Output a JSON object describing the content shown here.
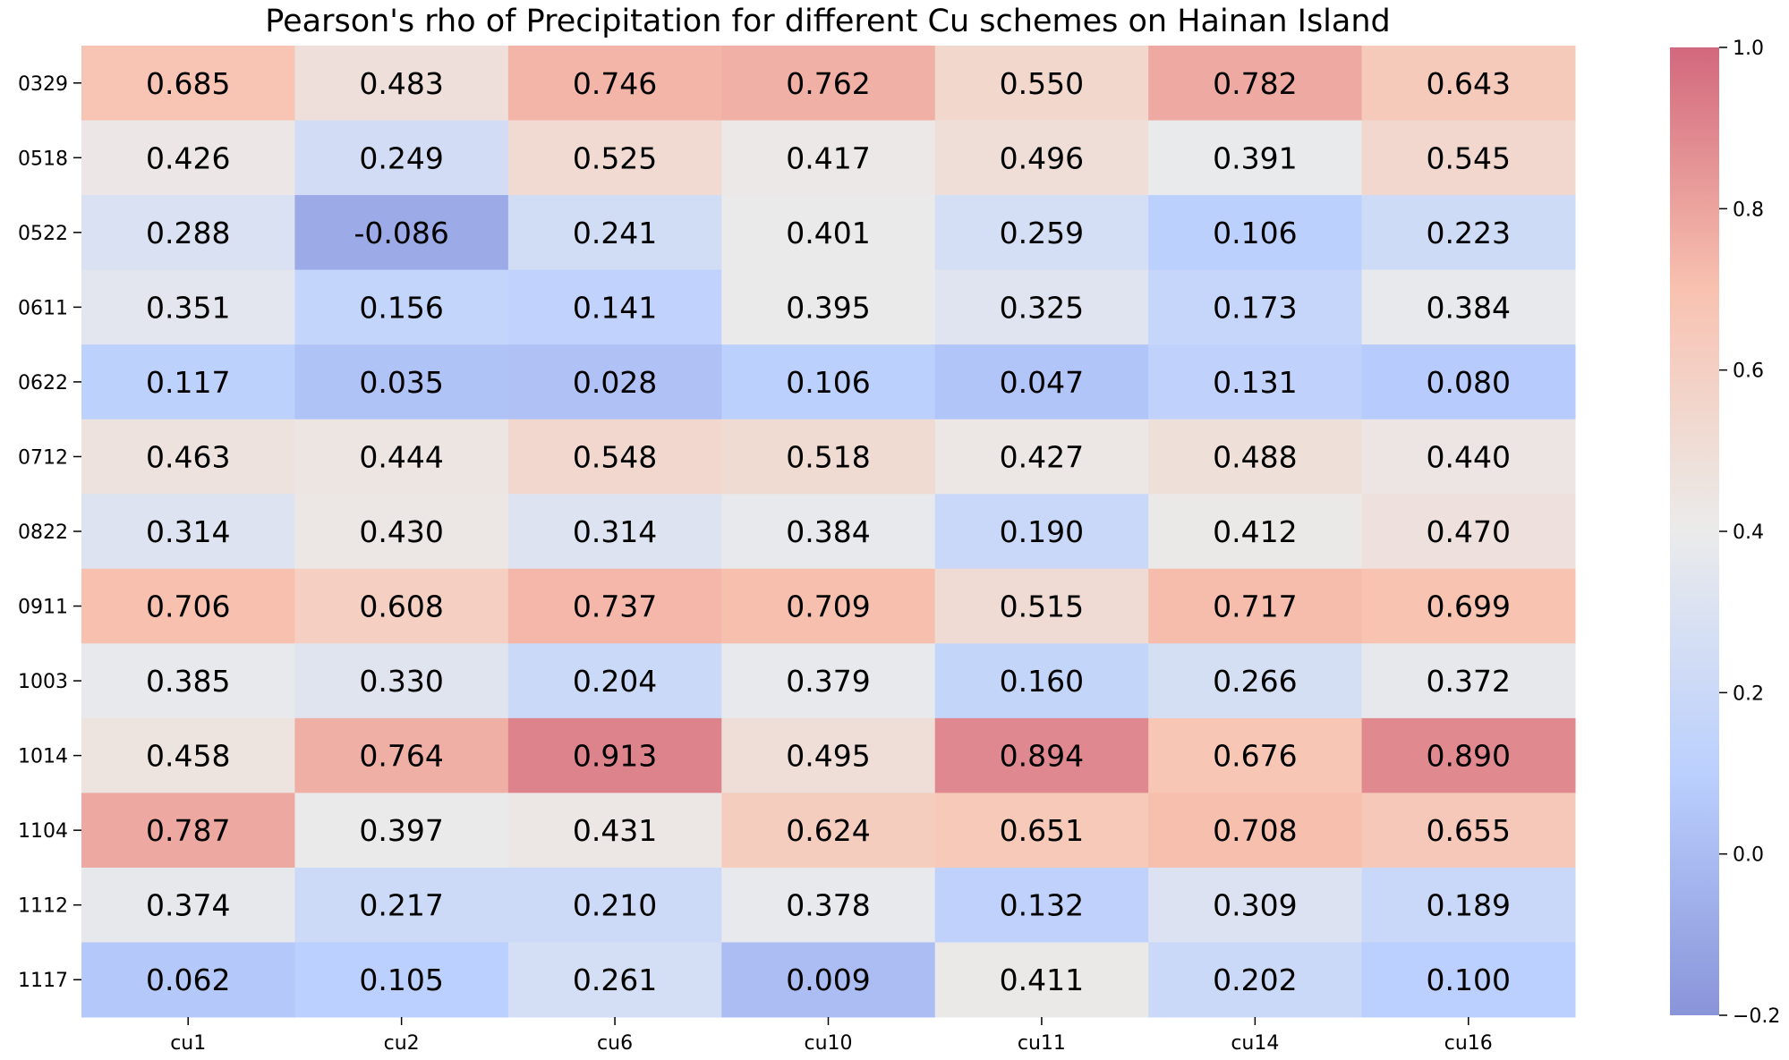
{
  "chart_data": {
    "type": "heatmap",
    "title": "Pearson's rho of Precipitation for different Cu schemes on Hainan Island",
    "xlabel": "",
    "ylabel": "",
    "columns": [
      "cu1",
      "cu2",
      "cu6",
      "cu10",
      "cu11",
      "cu14",
      "cu16"
    ],
    "rows": [
      "0329",
      "0518",
      "0522",
      "0611",
      "0622",
      "0712",
      "0822",
      "0911",
      "1003",
      "1014",
      "1104",
      "1112",
      "1117"
    ],
    "values": [
      [
        0.685,
        0.483,
        0.746,
        0.762,
        0.55,
        0.782,
        0.643
      ],
      [
        0.426,
        0.249,
        0.525,
        0.417,
        0.496,
        0.391,
        0.545
      ],
      [
        0.288,
        -0.086,
        0.241,
        0.401,
        0.259,
        0.106,
        0.223
      ],
      [
        0.351,
        0.156,
        0.141,
        0.395,
        0.325,
        0.173,
        0.384
      ],
      [
        0.117,
        0.035,
        0.028,
        0.106,
        0.047,
        0.131,
        0.08
      ],
      [
        0.463,
        0.444,
        0.548,
        0.518,
        0.427,
        0.488,
        0.44
      ],
      [
        0.314,
        0.43,
        0.314,
        0.384,
        0.19,
        0.412,
        0.47
      ],
      [
        0.706,
        0.608,
        0.737,
        0.709,
        0.515,
        0.717,
        0.699
      ],
      [
        0.385,
        0.33,
        0.204,
        0.379,
        0.16,
        0.266,
        0.372
      ],
      [
        0.458,
        0.764,
        0.913,
        0.495,
        0.894,
        0.676,
        0.89
      ],
      [
        0.787,
        0.397,
        0.431,
        0.624,
        0.651,
        0.708,
        0.655
      ],
      [
        0.374,
        0.217,
        0.21,
        0.378,
        0.132,
        0.309,
        0.189
      ],
      [
        0.062,
        0.105,
        0.261,
        0.009,
        0.411,
        0.202,
        0.1
      ]
    ],
    "cell_labels": [
      [
        "0.685",
        "0.483",
        "0.746",
        "0.762",
        "0.550",
        "0.782",
        "0.643"
      ],
      [
        "0.426",
        "0.249",
        "0.525",
        "0.417",
        "0.496",
        "0.391",
        "0.545"
      ],
      [
        "0.288",
        "-0.086",
        "0.241",
        "0.401",
        "0.259",
        "0.106",
        "0.223"
      ],
      [
        "0.351",
        "0.156",
        "0.141",
        "0.395",
        "0.325",
        "0.173",
        "0.384"
      ],
      [
        "0.117",
        "0.035",
        "0.028",
        "0.106",
        "0.047",
        "0.131",
        "0.080"
      ],
      [
        "0.463",
        "0.444",
        "0.548",
        "0.518",
        "0.427",
        "0.488",
        "0.440"
      ],
      [
        "0.314",
        "0.430",
        "0.314",
        "0.384",
        "0.190",
        "0.412",
        "0.470"
      ],
      [
        "0.706",
        "0.608",
        "0.737",
        "0.709",
        "0.515",
        "0.717",
        "0.699"
      ],
      [
        "0.385",
        "0.330",
        "0.204",
        "0.379",
        "0.160",
        "0.266",
        "0.372"
      ],
      [
        "0.458",
        "0.764",
        "0.913",
        "0.495",
        "0.894",
        "0.676",
        "0.890"
      ],
      [
        "0.787",
        "0.397",
        "0.431",
        "0.624",
        "0.651",
        "0.708",
        "0.655"
      ],
      [
        "0.374",
        "0.217",
        "0.210",
        "0.378",
        "0.132",
        "0.309",
        "0.189"
      ],
      [
        "0.062",
        "0.105",
        "0.261",
        "0.009",
        "0.411",
        "0.202",
        "0.100"
      ]
    ],
    "colorbar": {
      "colormap": "coolwarm",
      "vmin": -0.2,
      "vmax": 1.0,
      "ticks": [
        1.0,
        0.8,
        0.6,
        0.4,
        0.2,
        0.0,
        -0.2
      ],
      "tick_labels": [
        "1.0",
        "0.8",
        "0.6",
        "0.4",
        "0.2",
        "0.0",
        "−0.2"
      ],
      "alpha": 0.6
    }
  }
}
